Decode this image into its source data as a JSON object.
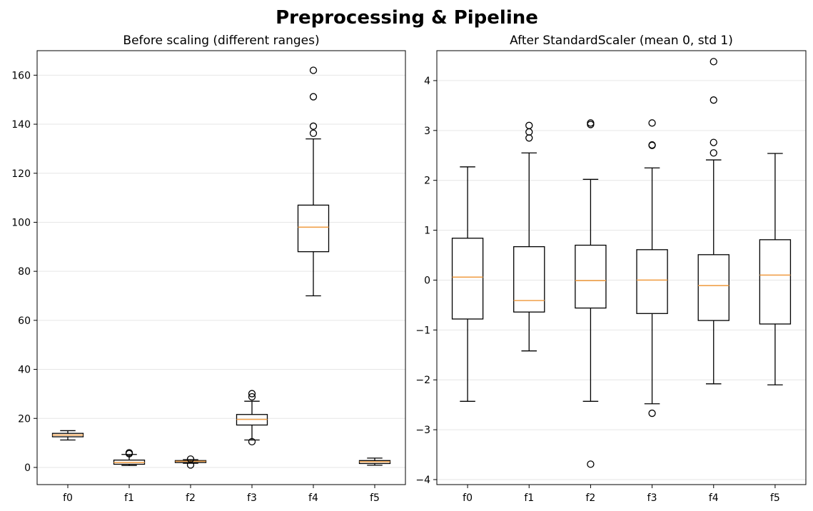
{
  "figure": {
    "suptitle": "Preprocessing & Pipeline"
  },
  "style": {
    "box": "#000000",
    "median": "#f0a04a",
    "grid": "#e6e6e6"
  },
  "chart_data": [
    {
      "type": "box",
      "title": "Before scaling (different ranges)",
      "xlabel": "",
      "ylabel": "",
      "categories": [
        "f0",
        "f1",
        "f2",
        "f3",
        "f4",
        "f5"
      ],
      "ylim": [
        -7,
        170
      ],
      "yticks": [
        0,
        20,
        40,
        60,
        80,
        100,
        120,
        140,
        160
      ],
      "ytick_labels": [
        "0",
        "20",
        "40",
        "60",
        "80",
        "100",
        "120",
        "140",
        "160"
      ],
      "grid": "y",
      "boxes": [
        {
          "whislo": 11.2,
          "q1": 12.5,
          "med": 13.2,
          "q3": 13.9,
          "whishi": 15.0,
          "fliers": []
        },
        {
          "whislo": 0.8,
          "q1": 1.3,
          "med": 2.0,
          "q3": 3.0,
          "whishi": 5.3,
          "fliers": [
            5.6,
            6.0
          ]
        },
        {
          "whislo": 1.7,
          "q1": 2.0,
          "med": 2.5,
          "q3": 2.8,
          "whishi": 3.2,
          "fliers": [
            1.0,
            3.4
          ]
        },
        {
          "whislo": 11.2,
          "q1": 17.3,
          "med": 19.6,
          "q3": 21.6,
          "whishi": 27.0,
          "fliers": [
            10.5,
            28.8,
            30.1
          ]
        },
        {
          "whislo": 70.0,
          "q1": 88.0,
          "med": 98.0,
          "q3": 107.0,
          "whishi": 134.0,
          "fliers": [
            136.3,
            139.2,
            151.2,
            162.0
          ]
        },
        {
          "whislo": 0.9,
          "q1": 1.6,
          "med": 2.3,
          "q3": 2.8,
          "whishi": 3.8,
          "fliers": []
        }
      ]
    },
    {
      "type": "box",
      "title": "After StandardScaler (mean 0, std 1)",
      "xlabel": "",
      "ylabel": "",
      "categories": [
        "f0",
        "f1",
        "f2",
        "f3",
        "f4",
        "f5"
      ],
      "ylim": [
        -4.1,
        4.6
      ],
      "yticks": [
        -4,
        -3,
        -2,
        -1,
        0,
        1,
        2,
        3,
        4
      ],
      "ytick_labels": [
        "−4",
        "−3",
        "−2",
        "−1",
        "0",
        "1",
        "2",
        "3",
        "4"
      ],
      "grid": "y",
      "boxes": [
        {
          "whislo": -2.43,
          "q1": -0.78,
          "med": 0.06,
          "q3": 0.84,
          "whishi": 2.27,
          "fliers": []
        },
        {
          "whislo": -1.42,
          "q1": -0.64,
          "med": -0.41,
          "q3": 0.67,
          "whishi": 2.55,
          "fliers": [
            2.85,
            2.97,
            3.1
          ]
        },
        {
          "whislo": -2.43,
          "q1": -0.56,
          "med": -0.01,
          "q3": 0.7,
          "whishi": 2.02,
          "fliers": [
            -3.69,
            3.12,
            3.15
          ]
        },
        {
          "whislo": -2.48,
          "q1": -0.67,
          "med": 0.0,
          "q3": 0.61,
          "whishi": 2.25,
          "fliers": [
            -2.67,
            2.7,
            2.71,
            3.15
          ]
        },
        {
          "whislo": -2.08,
          "q1": -0.81,
          "med": -0.11,
          "q3": 0.51,
          "whishi": 2.41,
          "fliers": [
            2.55,
            2.76,
            3.61,
            4.38
          ]
        },
        {
          "whislo": -2.1,
          "q1": -0.88,
          "med": 0.1,
          "q3": 0.81,
          "whishi": 2.54,
          "fliers": []
        }
      ]
    }
  ]
}
